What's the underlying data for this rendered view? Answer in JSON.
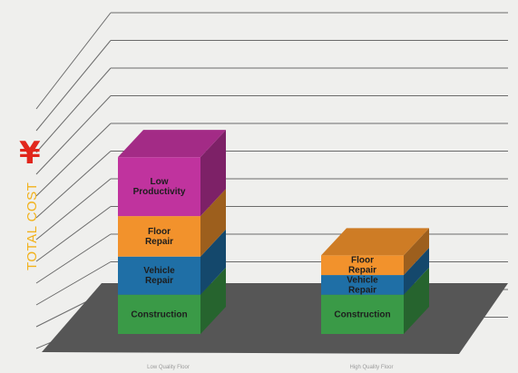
{
  "chart_data": {
    "type": "bar",
    "stacked": true,
    "three_d": true,
    "categories": [
      "Low Quality Floor",
      "High Quality Floor"
    ],
    "series": [
      {
        "name": "Construction",
        "color": "#3a9a47",
        "values": [
          66,
          66
        ]
      },
      {
        "name": "Vehicle Repair",
        "color": "#1f6fa6",
        "values": [
          64,
          33
        ]
      },
      {
        "name": "Floor Repair",
        "color": "#f2922c",
        "values": [
          68,
          33
        ]
      },
      {
        "name": "Low Productivity",
        "color": "#c0339e",
        "values": [
          99,
          0
        ]
      }
    ],
    "ylabel": "TOTAL COST",
    "currency_symbol": "¥",
    "ylim": [
      0,
      330
    ],
    "grid": true,
    "floor_color": "#565656"
  }
}
